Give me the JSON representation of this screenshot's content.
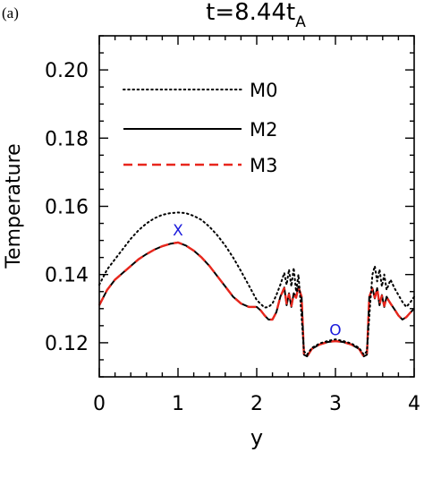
{
  "panel_label": "(a)",
  "chart_data": {
    "type": "line",
    "title": {
      "main": "t=8.44t",
      "sub": "A"
    },
    "xlabel": "y",
    "ylabel": "Temperature",
    "xlim": [
      0,
      4
    ],
    "ylim": [
      0.11,
      0.21
    ],
    "xticks": [
      0,
      1,
      2,
      3,
      4
    ],
    "xtick_labels": [
      "0",
      "1",
      "2",
      "3",
      "4"
    ],
    "yticks": [
      0.12,
      0.14,
      0.16,
      0.18,
      0.2
    ],
    "ytick_labels": [
      "0.12",
      "0.14",
      "0.16",
      "0.18",
      "0.20"
    ],
    "grid": false,
    "legend": "top-left",
    "series": [
      {
        "name": "M0",
        "style": "dotted",
        "color": "#000000",
        "x": [
          0,
          0.1,
          0.2,
          0.3,
          0.4,
          0.5,
          0.6,
          0.7,
          0.8,
          0.9,
          1.0,
          1.1,
          1.2,
          1.3,
          1.4,
          1.5,
          1.6,
          1.7,
          1.8,
          1.9,
          2.0,
          2.1,
          2.15,
          2.2,
          2.25,
          2.3,
          2.35,
          2.38,
          2.41,
          2.44,
          2.47,
          2.5,
          2.53,
          2.56,
          2.6,
          2.64,
          2.7,
          2.8,
          2.9,
          3.0,
          3.1,
          3.2,
          3.3,
          3.36,
          3.4,
          3.44,
          3.47,
          3.5,
          3.53,
          3.56,
          3.59,
          3.62,
          3.65,
          3.7,
          3.75,
          3.8,
          3.85,
          3.9,
          3.95,
          4.0
        ],
        "y": [
          0.137,
          0.1415,
          0.1445,
          0.1475,
          0.1505,
          0.153,
          0.155,
          0.1565,
          0.1575,
          0.158,
          0.1582,
          0.158,
          0.1572,
          0.156,
          0.154,
          0.1515,
          0.1485,
          0.145,
          0.141,
          0.1368,
          0.1325,
          0.1303,
          0.1305,
          0.1315,
          0.134,
          0.137,
          0.1405,
          0.137,
          0.1415,
          0.1365,
          0.142,
          0.135,
          0.14,
          0.131,
          0.1175,
          0.1165,
          0.1185,
          0.1198,
          0.1205,
          0.121,
          0.1205,
          0.1198,
          0.1185,
          0.1165,
          0.1175,
          0.131,
          0.14,
          0.1425,
          0.138,
          0.1415,
          0.1365,
          0.14,
          0.1355,
          0.1385,
          0.136,
          0.134,
          0.132,
          0.1305,
          0.1318,
          0.1335
        ]
      },
      {
        "name": "M2",
        "style": "solid",
        "color": "#000000",
        "x": [
          0,
          0.1,
          0.2,
          0.3,
          0.4,
          0.5,
          0.6,
          0.7,
          0.8,
          0.9,
          1.0,
          1.1,
          1.2,
          1.3,
          1.4,
          1.5,
          1.6,
          1.7,
          1.8,
          1.9,
          2.0,
          2.05,
          2.1,
          2.15,
          2.2,
          2.25,
          2.3,
          2.35,
          2.38,
          2.41,
          2.44,
          2.47,
          2.5,
          2.53,
          2.57,
          2.6,
          2.64,
          2.7,
          2.8,
          2.9,
          3.0,
          3.1,
          3.2,
          3.3,
          3.36,
          3.4,
          3.43,
          3.47,
          3.5,
          3.53,
          3.56,
          3.59,
          3.62,
          3.65,
          3.7,
          3.75,
          3.8,
          3.85,
          3.9,
          3.95,
          4.0
        ],
        "y": [
          0.131,
          0.1355,
          0.1385,
          0.1405,
          0.1425,
          0.1445,
          0.146,
          0.1473,
          0.1483,
          0.149,
          0.1494,
          0.1485,
          0.147,
          0.145,
          0.1425,
          0.1395,
          0.1365,
          0.1335,
          0.1315,
          0.1305,
          0.1305,
          0.1295,
          0.128,
          0.1268,
          0.1268,
          0.129,
          0.1335,
          0.1362,
          0.131,
          0.1345,
          0.1305,
          0.1345,
          0.1335,
          0.1365,
          0.1335,
          0.1165,
          0.116,
          0.1182,
          0.1195,
          0.1202,
          0.1205,
          0.1202,
          0.1195,
          0.1182,
          0.116,
          0.1165,
          0.1335,
          0.136,
          0.133,
          0.136,
          0.131,
          0.134,
          0.1305,
          0.1335,
          0.1315,
          0.1298,
          0.128,
          0.1268,
          0.1275,
          0.1288,
          0.13
        ]
      },
      {
        "name": "M3",
        "style": "dashed",
        "color": "#e8261c",
        "x": [
          0,
          0.1,
          0.2,
          0.3,
          0.4,
          0.5,
          0.6,
          0.7,
          0.8,
          0.9,
          1.0,
          1.1,
          1.2,
          1.3,
          1.4,
          1.5,
          1.6,
          1.7,
          1.8,
          1.9,
          2.0,
          2.05,
          2.1,
          2.15,
          2.2,
          2.25,
          2.3,
          2.35,
          2.38,
          2.41,
          2.44,
          2.47,
          2.5,
          2.53,
          2.57,
          2.6,
          2.64,
          2.7,
          2.8,
          2.9,
          3.0,
          3.1,
          3.2,
          3.3,
          3.36,
          3.4,
          3.43,
          3.47,
          3.5,
          3.53,
          3.56,
          3.59,
          3.62,
          3.65,
          3.7,
          3.75,
          3.8,
          3.85,
          3.9,
          3.95,
          4.0
        ],
        "y": [
          0.131,
          0.1355,
          0.1385,
          0.1405,
          0.1425,
          0.1445,
          0.146,
          0.1473,
          0.1483,
          0.149,
          0.1494,
          0.1485,
          0.147,
          0.145,
          0.1425,
          0.1395,
          0.1365,
          0.1335,
          0.1315,
          0.1305,
          0.1305,
          0.1295,
          0.128,
          0.1268,
          0.1268,
          0.129,
          0.1335,
          0.136,
          0.1315,
          0.1342,
          0.1308,
          0.1342,
          0.1332,
          0.1362,
          0.1335,
          0.1165,
          0.116,
          0.1182,
          0.1195,
          0.1202,
          0.1205,
          0.1202,
          0.1195,
          0.1182,
          0.116,
          0.1165,
          0.1335,
          0.1358,
          0.1332,
          0.1358,
          0.1313,
          0.1338,
          0.1308,
          0.1333,
          0.1315,
          0.1298,
          0.128,
          0.1268,
          0.1275,
          0.1288,
          0.13
        ]
      }
    ],
    "annotations": [
      {
        "text": "X",
        "x": 1.0,
        "y": 0.1515,
        "color": "#1a1adc"
      },
      {
        "text": "O",
        "x": 3.0,
        "y": 0.1222,
        "color": "#1a1adc"
      }
    ]
  }
}
